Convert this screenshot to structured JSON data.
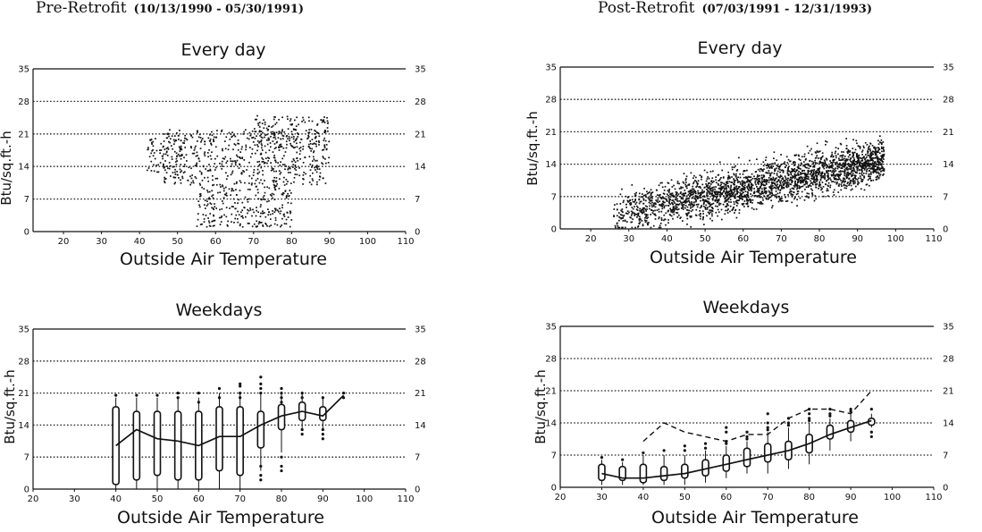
{
  "headers": {
    "pre": {
      "title": "Pre-Retrofit",
      "range": "(10/13/1990 - 05/30/1991)"
    },
    "post": {
      "title": "Post-Retrofit",
      "range": "(07/03/1991 - 12/31/1993)"
    }
  },
  "chart_data": [
    {
      "id": "pre_every_day",
      "type": "scatter",
      "title": "Every day",
      "xlabel": "Outside Air Temperature",
      "ylabel": "Btu/sq.ft.-h",
      "xlim": [
        12,
        110
      ],
      "ylim": [
        0,
        35
      ],
      "x_ticks": [
        20,
        30,
        40,
        50,
        60,
        70,
        80,
        90,
        100,
        110
      ],
      "y_ticks": [
        0,
        7,
        14,
        21,
        28,
        35
      ],
      "grid": "dotted horizontal",
      "clusters": [
        {
          "x": [
            46,
            90
          ],
          "y": [
            10,
            22
          ],
          "count": 550
        },
        {
          "x": [
            55,
            80
          ],
          "y": [
            1,
            10
          ],
          "count": 260
        },
        {
          "x": [
            70,
            90
          ],
          "y": [
            18,
            25
          ],
          "count": 140
        },
        {
          "x": [
            42,
            52
          ],
          "y": [
            12,
            21
          ],
          "count": 80
        }
      ]
    },
    {
      "id": "post_every_day",
      "type": "scatter",
      "title": "Every day",
      "xlabel": "Outside Air Temperature",
      "ylabel": "Btu/sq.ft.-h",
      "xlim": [
        12,
        110
      ],
      "ylim": [
        0,
        35
      ],
      "x_ticks": [
        20,
        30,
        40,
        50,
        60,
        70,
        80,
        90,
        100,
        110
      ],
      "y_ticks": [
        0,
        7,
        14,
        21,
        28,
        35
      ],
      "grid": "dotted horizontal",
      "trend": {
        "x": [
          26,
          97
        ],
        "y": [
          3,
          15
        ],
        "spread": 2.3,
        "count": 2600
      }
    },
    {
      "id": "pre_weekdays",
      "type": "box",
      "title": "Weekdays",
      "xlabel": "Outside Air Temperature",
      "ylabel": "Btu/sq.ft.-h",
      "xlim": [
        20,
        110
      ],
      "ylim": [
        0,
        35
      ],
      "x_ticks": [
        20,
        30,
        40,
        50,
        60,
        70,
        80,
        90,
        100,
        110
      ],
      "y_ticks": [
        0,
        7,
        14,
        21,
        28,
        35
      ],
      "grid": "dotted horizontal",
      "boxes": [
        {
          "x": 40,
          "min": 0,
          "q1": 1,
          "q3": 18,
          "max": 20
        },
        {
          "x": 45,
          "min": 0,
          "q1": 2,
          "q3": 17,
          "max": 20
        },
        {
          "x": 50,
          "min": 0,
          "q1": 3,
          "q3": 17,
          "max": 20
        },
        {
          "x": 55,
          "min": 0,
          "q1": 2,
          "q3": 17,
          "max": 20
        },
        {
          "x": 60,
          "min": 0,
          "q1": 2,
          "q3": 17,
          "max": 20
        },
        {
          "x": 65,
          "min": 0,
          "q1": 4,
          "q3": 18,
          "max": 21
        },
        {
          "x": 70,
          "min": 0,
          "q1": 3,
          "q3": 18,
          "max": 21
        },
        {
          "x": 75,
          "min": 4,
          "q1": 9,
          "q3": 17,
          "max": 21
        },
        {
          "x": 80,
          "min": 8,
          "q1": 13,
          "q3": 18.5,
          "max": 21
        },
        {
          "x": 85,
          "min": 13,
          "q1": 15,
          "q3": 19,
          "max": 21
        },
        {
          "x": 90,
          "min": 13,
          "q1": 15,
          "q3": 18,
          "max": 20
        }
      ],
      "outliers": [
        {
          "x": 40,
          "y": [
            20.5
          ]
        },
        {
          "x": 45,
          "y": [
            20.5
          ]
        },
        {
          "x": 50,
          "y": [
            20.5
          ]
        },
        {
          "x": 55,
          "y": [
            20,
            21
          ]
        },
        {
          "x": 60,
          "y": [
            19,
            21
          ]
        },
        {
          "x": 65,
          "y": [
            20,
            22
          ]
        },
        {
          "x": 70,
          "y": [
            20,
            21,
            22.5,
            23
          ]
        },
        {
          "x": 75,
          "y": [
            2,
            3,
            5,
            21,
            22,
            23,
            24.5
          ]
        },
        {
          "x": 80,
          "y": [
            4,
            5,
            7,
            19,
            20,
            21,
            22
          ]
        },
        {
          "x": 85,
          "y": [
            12,
            13,
            20,
            21
          ]
        },
        {
          "x": 90,
          "y": [
            11,
            12,
            13,
            20
          ]
        },
        {
          "x": 95,
          "y": [
            20,
            21
          ]
        }
      ],
      "median_line": {
        "x": [
          40,
          45,
          50,
          55,
          60,
          65,
          70,
          75,
          80,
          85,
          90,
          95
        ],
        "y": [
          9.5,
          13,
          11,
          10.5,
          9.5,
          11.5,
          11.5,
          14,
          16,
          17,
          16,
          20.5
        ]
      }
    },
    {
      "id": "post_weekdays",
      "type": "box",
      "title": "Weekdays",
      "xlabel": "Outside Air Temperature",
      "ylabel": "Btu/sq.ft.-h",
      "xlim": [
        20,
        110
      ],
      "ylim": [
        0,
        35
      ],
      "x_ticks": [
        20,
        30,
        40,
        50,
        60,
        70,
        80,
        90,
        100,
        110
      ],
      "y_ticks": [
        0,
        7,
        14,
        21,
        28,
        35
      ],
      "grid": "dotted horizontal",
      "boxes": [
        {
          "x": 30,
          "min": 0.5,
          "q1": 1.5,
          "q3": 5,
          "max": 6
        },
        {
          "x": 35,
          "min": 0.5,
          "q1": 1.5,
          "q3": 4.5,
          "max": 5.5
        },
        {
          "x": 40,
          "min": 0.5,
          "q1": 1,
          "q3": 5,
          "max": 7
        },
        {
          "x": 45,
          "min": 0.5,
          "q1": 1.5,
          "q3": 4.5,
          "max": 7
        },
        {
          "x": 50,
          "min": 0.5,
          "q1": 2,
          "q3": 5,
          "max": 7
        },
        {
          "x": 55,
          "min": 1,
          "q1": 2.5,
          "q3": 6,
          "max": 8
        },
        {
          "x": 60,
          "min": 2,
          "q1": 3.5,
          "q3": 7,
          "max": 9
        },
        {
          "x": 65,
          "min": 3,
          "q1": 4.5,
          "q3": 8.5,
          "max": 10
        },
        {
          "x": 70,
          "min": 3,
          "q1": 5.5,
          "q3": 9.5,
          "max": 12
        },
        {
          "x": 75,
          "min": 4,
          "q1": 6,
          "q3": 10,
          "max": 13
        },
        {
          "x": 80,
          "min": 5,
          "q1": 7.5,
          "q3": 11.5,
          "max": 14
        },
        {
          "x": 85,
          "min": 8,
          "q1": 10.5,
          "q3": 13.5,
          "max": 15
        },
        {
          "x": 90,
          "min": 10,
          "q1": 12,
          "q3": 14.5,
          "max": 16
        },
        {
          "x": 95,
          "min": 13,
          "q1": 13.5,
          "q3": 15,
          "max": 16
        }
      ],
      "outliers": [
        {
          "x": 30,
          "y": [
            6.5
          ]
        },
        {
          "x": 35,
          "y": [
            6
          ]
        },
        {
          "x": 40,
          "y": [
            7.5
          ]
        },
        {
          "x": 45,
          "y": [
            8
          ]
        },
        {
          "x": 50,
          "y": [
            8,
            9
          ]
        },
        {
          "x": 55,
          "y": [
            8.5,
            9.5
          ]
        },
        {
          "x": 60,
          "y": [
            9.5,
            10,
            12,
            13
          ]
        },
        {
          "x": 65,
          "y": [
            10.5,
            11,
            12
          ]
        },
        {
          "x": 70,
          "y": [
            12.5,
            13,
            14,
            16
          ]
        },
        {
          "x": 75,
          "y": [
            13.5,
            14,
            15
          ]
        },
        {
          "x": 80,
          "y": [
            14.5,
            15,
            16,
            17
          ]
        },
        {
          "x": 85,
          "y": [
            15.5,
            16,
            17
          ]
        },
        {
          "x": 90,
          "y": [
            16.5,
            17
          ]
        },
        {
          "x": 95,
          "y": [
            11,
            12,
            17
          ]
        }
      ],
      "median_line": {
        "x": [
          30,
          35,
          40,
          45,
          50,
          55,
          60,
          65,
          70,
          75,
          80,
          85,
          90,
          95
        ],
        "y": [
          3,
          2,
          2,
          2.5,
          3,
          4,
          5,
          6,
          7,
          8,
          9.5,
          11.5,
          13,
          14.5
        ]
      },
      "upper_dashed_line": {
        "x": [
          40,
          45,
          50,
          55,
          60,
          65,
          70,
          75,
          80,
          85,
          90,
          95
        ],
        "y": [
          10,
          14,
          12,
          11,
          10,
          11.5,
          11.5,
          15,
          17,
          17,
          16,
          21
        ]
      }
    }
  ]
}
